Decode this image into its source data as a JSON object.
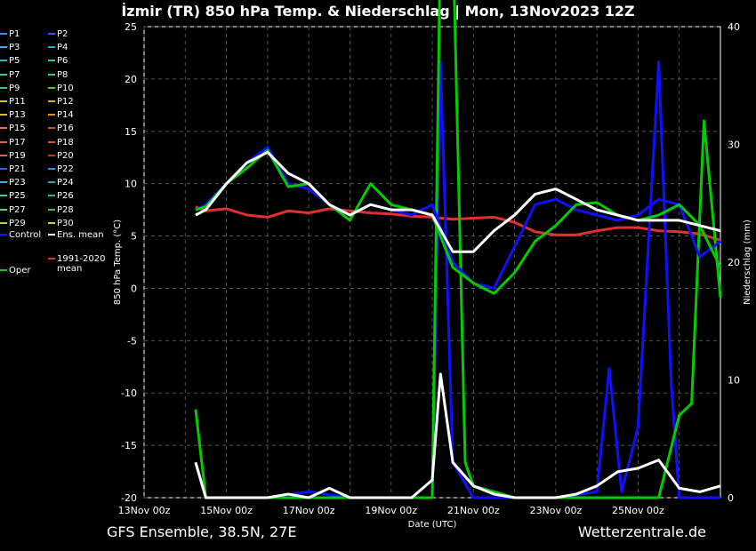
{
  "title": "İzmir  (TR)  850 hPa Temp. & Niederschlag | Mon, 13Nov2023 12Z",
  "footer": {
    "left": "GFS Ensemble, 38.5N, 27E",
    "right": "Wetterzentrale.de"
  },
  "colors": {
    "control": "#1010ff",
    "ens_mean": "#ffffff",
    "oper": "#00cc00",
    "climate_mean": "#e03030",
    "grid": "#555555"
  },
  "legend": {
    "members": [
      {
        "label": "P1",
        "color": "#3a8cff"
      },
      {
        "label": "P2",
        "color": "#2a5cff"
      },
      {
        "label": "P3",
        "color": "#40a0ff"
      },
      {
        "label": "P4",
        "color": "#20b0d0"
      },
      {
        "label": "P5",
        "color": "#20c0c0"
      },
      {
        "label": "P6",
        "color": "#20d080"
      },
      {
        "label": "P7",
        "color": "#30c8a0"
      },
      {
        "label": "P8",
        "color": "#30d060"
      },
      {
        "label": "P9",
        "color": "#20d080"
      },
      {
        "label": "P10",
        "color": "#40d020"
      },
      {
        "label": "P11",
        "color": "#c8c820"
      },
      {
        "label": "P12",
        "color": "#d0b020"
      },
      {
        "label": "P13",
        "color": "#d8c030"
      },
      {
        "label": "P14",
        "color": "#e09020"
      },
      {
        "label": "P15",
        "color": "#e07040"
      },
      {
        "label": "P16",
        "color": "#d05020"
      },
      {
        "label": "P17",
        "color": "#e06040"
      },
      {
        "label": "P18",
        "color": "#e05030"
      },
      {
        "label": "P19",
        "color": "#e06060"
      },
      {
        "label": "P20",
        "color": "#d03030"
      },
      {
        "label": "P21",
        "color": "#3060e0"
      },
      {
        "label": "P22",
        "color": "#3090e0"
      },
      {
        "label": "P23",
        "color": "#40b0f0"
      },
      {
        "label": "P24",
        "color": "#30a0c0"
      },
      {
        "label": "P25",
        "color": "#30d0b0"
      },
      {
        "label": "P26",
        "color": "#20c080"
      },
      {
        "label": "P27",
        "color": "#40e080"
      },
      {
        "label": "P28",
        "color": "#30c050"
      },
      {
        "label": "P29",
        "color": "#a0e020"
      },
      {
        "label": "P30",
        "color": "#e0d020"
      }
    ],
    "control": "Control",
    "ens_mean": "Ens. mean",
    "oper": "Oper",
    "climate_line1": "1991-2020",
    "climate_line2": "mean"
  },
  "chart_data": {
    "type": "line",
    "x_labels": [
      "13Nov 00z",
      "15Nov 00z",
      "17Nov 00z",
      "19Nov 00z",
      "21Nov 00z",
      "23Nov 00z",
      "25Nov 00z"
    ],
    "xlabel": "Date (UTC)",
    "ylabel_left": "850 hPa Temp. (°C)",
    "ylabel_right": "Niederschlag (mm)",
    "ylim_left": [
      -20,
      25
    ],
    "yticks_left": [
      25,
      20,
      15,
      10,
      5,
      0,
      -5,
      -10,
      -15,
      -20
    ],
    "ylim_right": [
      0,
      40
    ],
    "yticks_right": [
      40,
      30,
      20,
      10,
      0
    ],
    "grid": true,
    "x_range_days": [
      0,
      14
    ],
    "temp_series": {
      "ens_mean": {
        "x": [
          1.25,
          1.5,
          2,
          2.5,
          3,
          3.5,
          4,
          4.5,
          5,
          5.5,
          6,
          6.5,
          7,
          7.5,
          8,
          8.5,
          9,
          9.5,
          10,
          10.5,
          11,
          11.5,
          12,
          12.5,
          13,
          13.5,
          14
        ],
        "y": [
          7,
          7.5,
          10,
          12,
          13,
          11,
          10,
          8,
          7,
          8,
          7.5,
          7.5,
          7,
          3.5,
          3.5,
          5.5,
          7,
          9,
          9.5,
          8.5,
          7.5,
          7,
          6.5,
          6.5,
          6.5,
          6,
          5.5
        ]
      },
      "control": {
        "x": [
          1.25,
          1.5,
          2,
          2.5,
          3,
          3.5,
          4,
          4.5,
          5,
          5.5,
          6,
          6.5,
          7,
          7.5,
          8,
          8.5,
          9,
          9.5,
          10,
          10.5,
          11,
          11.5,
          12,
          12.5,
          13,
          13.5,
          14
        ],
        "y": [
          7.5,
          8,
          10,
          12,
          13.5,
          10,
          9.5,
          8,
          7,
          8,
          7.5,
          7,
          8,
          2.5,
          0.5,
          0,
          4,
          8,
          8.5,
          7.5,
          7,
          6.5,
          7,
          8.5,
          8,
          3,
          4.5
        ]
      },
      "oper": {
        "x": [
          1.25,
          1.5,
          2,
          2.5,
          3,
          3.5,
          4,
          4.5,
          5,
          5.5,
          6,
          6.5,
          7,
          7.5,
          8,
          8.5,
          9,
          9.5,
          10,
          10.5,
          11,
          11.5,
          12,
          12.5,
          13,
          13.5,
          14
        ],
        "y": [
          7.5,
          7.8,
          10,
          11.5,
          13.2,
          9.7,
          10,
          8,
          6.5,
          10,
          8,
          7.5,
          7,
          2,
          0.5,
          -0.5,
          1.5,
          4.5,
          6,
          8,
          8.2,
          7,
          6.5,
          7,
          8,
          6,
          2
        ]
      },
      "climate_mean": {
        "x": [
          1.25,
          1.5,
          2,
          2.5,
          3,
          3.5,
          4,
          4.5,
          5,
          5.5,
          6,
          6.5,
          7,
          7.5,
          8,
          8.5,
          9,
          9.5,
          10,
          10.5,
          11,
          11.5,
          12,
          12.5,
          13,
          13.5,
          14
        ],
        "y": [
          7.8,
          7.4,
          7.6,
          7.0,
          6.8,
          7.4,
          7.2,
          7.6,
          7.4,
          7.2,
          7.1,
          6.9,
          6.8,
          6.6,
          6.7,
          6.8,
          6.3,
          5.4,
          5.1,
          5.1,
          5.5,
          5.8,
          5.8,
          5.5,
          5.4,
          5.2,
          4.6
        ]
      }
    },
    "precip_series": {
      "ens_mean": {
        "x": [
          1.25,
          1.5,
          2,
          3,
          3.5,
          4,
          4.5,
          5,
          6,
          6.5,
          7,
          7.2,
          7.5,
          8,
          8.5,
          9,
          10,
          10.5,
          11,
          11.5,
          12,
          12.5,
          13,
          13.5,
          14
        ],
        "y": [
          3,
          0,
          0,
          0,
          0.3,
          0,
          0.8,
          0,
          0,
          0,
          1.5,
          10.5,
          3,
          1,
          0.3,
          0,
          0,
          0.3,
          1,
          2.2,
          2.5,
          3.2,
          0.8,
          0.5,
          1
        ]
      },
      "control": {
        "x": [
          1.25,
          1.5,
          2,
          3,
          4,
          5,
          6,
          7,
          7.2,
          7.5,
          8,
          9,
          10,
          11,
          11.3,
          11.6,
          12,
          12.5,
          12.8,
          13,
          14
        ],
        "y": [
          3,
          0,
          0,
          0,
          0.5,
          0,
          0,
          0,
          37,
          3,
          0,
          0,
          0,
          0.5,
          11,
          0.5,
          6,
          37,
          10,
          0,
          0
        ]
      },
      "oper": {
        "x": [
          1.25,
          1.5,
          2,
          3,
          4,
          5,
          6,
          7,
          7.2,
          7.5,
          7.8,
          8,
          9,
          10,
          11,
          12,
          12.5,
          13,
          13.3,
          13.6,
          14
        ],
        "y": [
          7.5,
          0,
          0,
          0,
          0,
          0,
          0,
          0,
          48,
          48,
          3,
          1,
          0,
          0,
          0,
          0,
          0,
          7,
          8,
          32,
          17
        ]
      }
    }
  }
}
